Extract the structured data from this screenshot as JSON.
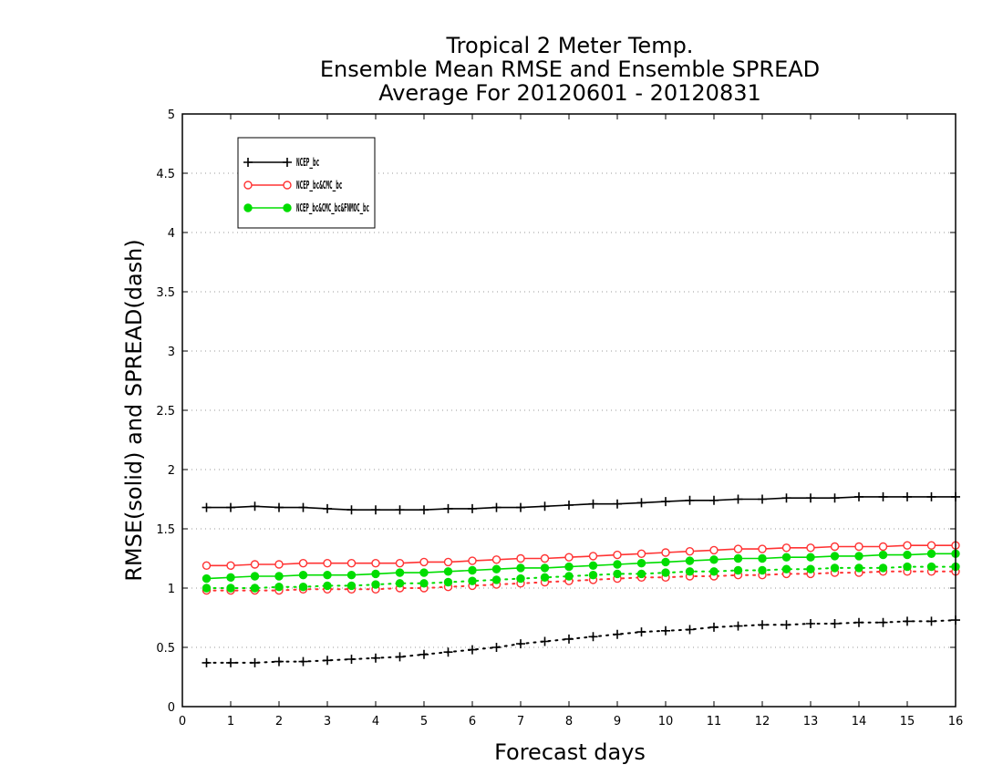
{
  "chart_data": {
    "type": "line",
    "title_lines": [
      "Tropical 2 Meter Temp.",
      "Ensemble Mean RMSE and Ensemble SPREAD",
      "Average For 20120601 - 20120831"
    ],
    "xlabel": "Forecast days",
    "ylabel": "RMSE(solid) and SPREAD(dash)",
    "xlim": [
      0,
      16
    ],
    "ylim": [
      0,
      5
    ],
    "xticks": [
      0,
      1,
      2,
      3,
      4,
      5,
      6,
      7,
      8,
      9,
      10,
      11,
      12,
      13,
      14,
      15,
      16
    ],
    "yticks": [
      0,
      0.5,
      1,
      1.5,
      2,
      2.5,
      3,
      3.5,
      4,
      4.5,
      5
    ],
    "ytick_labels": [
      "0",
      "0.5",
      "1",
      "1.5",
      "2",
      "2.5",
      "3",
      "3.5",
      "4",
      "4.5",
      "5"
    ],
    "grid": "horizontal dotted",
    "legend_position": "top-left",
    "x": [
      0.5,
      1,
      1.5,
      2,
      2.5,
      3,
      3.5,
      4,
      4.5,
      5,
      5.5,
      6,
      6.5,
      7,
      7.5,
      8,
      8.5,
      9,
      9.5,
      10,
      10.5,
      11,
      11.5,
      12,
      12.5,
      13,
      13.5,
      14,
      14.5,
      15,
      15.5,
      16
    ],
    "series": [
      {
        "name": "NCEP_bc",
        "color": "#000000",
        "marker": "plus",
        "rmse": [
          1.68,
          1.68,
          1.69,
          1.68,
          1.68,
          1.67,
          1.66,
          1.66,
          1.66,
          1.66,
          1.67,
          1.67,
          1.68,
          1.68,
          1.69,
          1.7,
          1.71,
          1.71,
          1.72,
          1.73,
          1.74,
          1.74,
          1.75,
          1.75,
          1.76,
          1.76,
          1.76,
          1.77,
          1.77,
          1.77,
          1.77,
          1.77
        ],
        "spread": [
          0.37,
          0.37,
          0.37,
          0.38,
          0.38,
          0.39,
          0.4,
          0.41,
          0.42,
          0.44,
          0.46,
          0.48,
          0.5,
          0.53,
          0.55,
          0.57,
          0.59,
          0.61,
          0.63,
          0.64,
          0.65,
          0.67,
          0.68,
          0.69,
          0.69,
          0.7,
          0.7,
          0.71,
          0.71,
          0.72,
          0.72,
          0.73
        ]
      },
      {
        "name": "NCEP_bc&CMC_bc",
        "color": "#ff3333",
        "marker": "open-circle",
        "rmse": [
          1.19,
          1.19,
          1.2,
          1.2,
          1.21,
          1.21,
          1.21,
          1.21,
          1.21,
          1.22,
          1.22,
          1.23,
          1.24,
          1.25,
          1.25,
          1.26,
          1.27,
          1.28,
          1.29,
          1.3,
          1.31,
          1.32,
          1.33,
          1.33,
          1.34,
          1.34,
          1.35,
          1.35,
          1.35,
          1.36,
          1.36,
          1.36
        ],
        "spread": [
          0.98,
          0.98,
          0.98,
          0.98,
          0.99,
          0.99,
          0.99,
          0.99,
          1.0,
          1.0,
          1.01,
          1.02,
          1.03,
          1.04,
          1.05,
          1.06,
          1.07,
          1.08,
          1.09,
          1.09,
          1.1,
          1.1,
          1.11,
          1.11,
          1.12,
          1.12,
          1.13,
          1.13,
          1.14,
          1.14,
          1.14,
          1.14
        ]
      },
      {
        "name": "NCEP_bc&CMC_bc&FNMOC_bc",
        "color": "#00dd00",
        "marker": "filled-circle",
        "rmse": [
          1.08,
          1.09,
          1.1,
          1.1,
          1.11,
          1.11,
          1.11,
          1.12,
          1.13,
          1.13,
          1.14,
          1.15,
          1.16,
          1.17,
          1.17,
          1.18,
          1.19,
          1.2,
          1.21,
          1.22,
          1.23,
          1.24,
          1.25,
          1.25,
          1.26,
          1.26,
          1.27,
          1.27,
          1.28,
          1.28,
          1.29,
          1.29
        ],
        "spread": [
          1.0,
          1.0,
          1.0,
          1.01,
          1.01,
          1.02,
          1.02,
          1.03,
          1.04,
          1.04,
          1.05,
          1.06,
          1.07,
          1.08,
          1.09,
          1.1,
          1.11,
          1.12,
          1.12,
          1.13,
          1.14,
          1.14,
          1.15,
          1.15,
          1.16,
          1.16,
          1.17,
          1.17,
          1.17,
          1.18,
          1.18,
          1.18
        ]
      }
    ]
  }
}
